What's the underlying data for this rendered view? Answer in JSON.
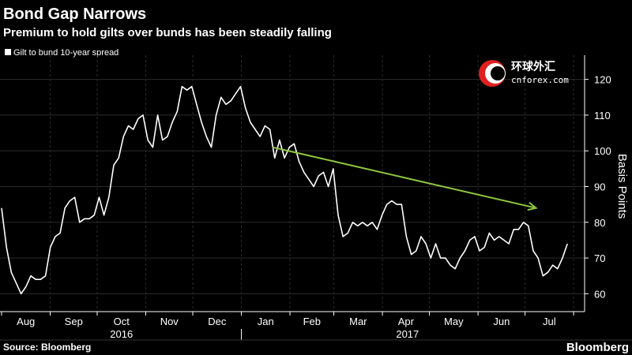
{
  "chart_data": {
    "type": "line",
    "title": "Bond Gap Narrows",
    "subtitle": "Premium to hold gilts over bunds has been steadily falling",
    "ylabel": "Basis Points",
    "xlabel": "",
    "ylim": [
      55,
      125
    ],
    "yticks": [
      "60",
      "70",
      "80",
      "90",
      "100",
      "110",
      "120"
    ],
    "grid": true,
    "legend": "top-left",
    "months": [
      "Aug",
      "Sep",
      "Oct",
      "Nov",
      "Dec",
      "Jan",
      "Feb",
      "Mar",
      "Apr",
      "May",
      "Jun",
      "Jul"
    ],
    "years": [
      "2016",
      "2017"
    ],
    "series": [
      {
        "name": "Gilt to bund 10-year spread",
        "color": "#ffffff",
        "start": "2016-08-01",
        "end": "2017-07-28",
        "values": [
          84,
          73,
          66,
          63,
          60,
          62,
          65,
          64,
          64,
          65,
          73,
          76,
          77,
          84,
          86,
          87,
          80,
          81,
          81,
          82,
          87,
          82,
          87,
          96,
          98,
          104,
          107,
          106,
          109,
          110,
          103,
          101,
          110,
          103,
          104,
          108,
          111,
          118,
          117,
          118,
          113,
          108,
          104,
          101,
          110,
          115,
          113,
          114,
          116,
          118,
          112,
          108,
          106,
          104,
          107,
          106,
          98,
          103,
          98,
          101,
          102,
          97,
          94,
          92,
          90,
          93,
          94,
          90,
          95,
          82,
          76,
          77,
          80,
          79,
          80,
          79,
          80,
          78,
          82,
          85,
          86,
          85,
          85,
          76,
          71,
          72,
          76,
          74,
          70,
          74,
          70,
          70,
          68,
          67,
          70,
          72,
          75,
          76,
          72,
          73,
          77,
          75,
          76,
          75,
          74,
          78,
          78,
          80,
          79,
          72,
          70,
          65,
          66,
          68,
          67,
          70,
          74
        ]
      }
    ],
    "annotations": [
      {
        "type": "arrow",
        "color": "#8dc63f",
        "from": [
          "2017-01-21",
          101
        ],
        "to": [
          "2017-07-08",
          84
        ]
      }
    ]
  },
  "legend": {
    "label": "Gilt to bund 10-year spread",
    "marker_color": "#ffffff"
  },
  "source": "Source: Bloomberg",
  "brand": "Bloomberg",
  "watermark": {
    "cn": "环球外汇",
    "en": "cnforex.com"
  }
}
